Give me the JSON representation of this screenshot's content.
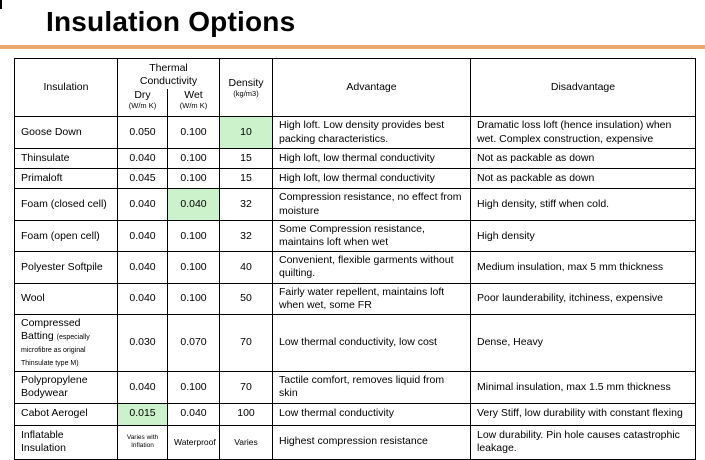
{
  "slide": {
    "title": "Insulation Options",
    "accent_color": "#EDA96B",
    "highlight_color": "#CCF2CC"
  },
  "table": {
    "headers": {
      "insulation": "Insulation",
      "thermal_conductivity": "Thermal Conductivity",
      "dry": "Dry",
      "dry_unit": "(W/m K)",
      "wet": "Wet",
      "wet_unit": "(W/m K)",
      "density": "Density",
      "density_unit": "(kg/m3)",
      "advantage": "Advantage",
      "disadvantage": "Disadvantage"
    },
    "rows": [
      {
        "insulation": "Goose Down",
        "note": "",
        "dry": "0.050",
        "wet": "0.100",
        "density": "10",
        "highlight": "density",
        "advantage": "High loft.  Low density provides best packing characteristics.",
        "disadvantage": "Dramatic loss loft (hence insulation) when wet. Complex construction, expensive"
      },
      {
        "insulation": "Thinsulate",
        "note": "",
        "dry": "0.040",
        "wet": "0.100",
        "density": "15",
        "highlight": "",
        "advantage": "High loft, low thermal conductivity",
        "disadvantage": "Not as packable as down"
      },
      {
        "insulation": "Primaloft",
        "note": "",
        "dry": "0.045",
        "wet": "0.100",
        "density": "15",
        "highlight": "",
        "advantage": "High loft, low thermal conductivity",
        "disadvantage": "Not as packable as down"
      },
      {
        "insulation": "Foam (closed cell)",
        "note": "",
        "dry": "0.040",
        "wet": "0.040",
        "density": "32",
        "highlight": "wet",
        "advantage": "Compression resistance, no effect from moisture",
        "disadvantage": "High density, stiff when cold."
      },
      {
        "insulation": "Foam (open cell)",
        "note": "",
        "dry": "0.040",
        "wet": "0.100",
        "density": "32",
        "highlight": "",
        "advantage": "Some Compression resistance, maintains loft when wet",
        "disadvantage": "High density"
      },
      {
        "insulation": "Polyester Softpile",
        "note": "",
        "dry": "0.040",
        "wet": "0.100",
        "density": "40",
        "highlight": "",
        "advantage": "Convenient, flexible garments without quilting.",
        "disadvantage": "Medium insulation, max 5 mm thickness"
      },
      {
        "insulation": "Wool",
        "note": "",
        "dry": "0.040",
        "wet": "0.100",
        "density": "50",
        "highlight": "",
        "advantage": "Fairly water repellent, maintains loft when wet, some FR",
        "disadvantage": "Poor launderability, itchiness, expensive"
      },
      {
        "insulation": "Compressed Batting",
        "note": "(especially microfibre as original Thinsulate type M)",
        "dry": "0.030",
        "wet": "0.070",
        "density": "70",
        "highlight": "",
        "advantage": "Low thermal conductivity, low cost",
        "disadvantage": "Dense, Heavy"
      },
      {
        "insulation": "Polypropylene Bodywear",
        "note": "",
        "dry": "0.040",
        "wet": "0.100",
        "density": "70",
        "highlight": "",
        "advantage": "Tactile comfort, removes liquid from skin",
        "disadvantage": "Minimal insulation, max 1.5 mm thickness"
      },
      {
        "insulation": "Cabot Aerogel",
        "note": "",
        "dry": "0.015",
        "wet": "0.040",
        "density": "100",
        "highlight": "dry",
        "advantage": "Low thermal conductivity",
        "disadvantage": "Very Stiff, low durability with constant flexing"
      },
      {
        "insulation": "Inflatable Insulation",
        "note": "",
        "dry": "Varies with Inflation",
        "wet": "Waterproof",
        "density": "Varies",
        "highlight": "",
        "advantage": "Highest compression resistance",
        "disadvantage": "Low durability. Pin hole causes catastrophic leakage."
      }
    ]
  }
}
